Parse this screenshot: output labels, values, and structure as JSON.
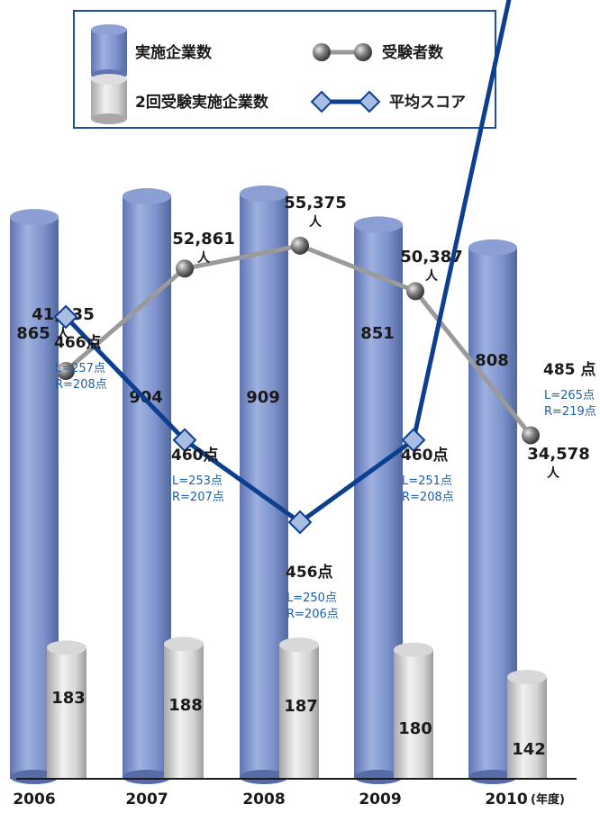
{
  "chart_data": {
    "type": "bar",
    "categories": [
      "2006",
      "2007",
      "2008",
      "2009",
      "2010"
    ],
    "x_unit_label": "(年度)",
    "legend": {
      "position": "top",
      "entries": [
        {
          "label": "実施企業数",
          "kind": "blue-cylinder"
        },
        {
          "label": "受験者数",
          "kind": "gray-line-ball"
        },
        {
          "label": "2回受験実施企業数",
          "kind": "gray-cylinder"
        },
        {
          "label": "平均スコア",
          "kind": "blue-line-diamond"
        }
      ]
    },
    "series": [
      {
        "name": "実施企業数",
        "kind": "bar",
        "values": [
          865,
          904,
          909,
          851,
          808
        ],
        "labels": [
          "865",
          "904",
          "909",
          "851",
          "808"
        ]
      },
      {
        "name": "2回受験実施企業数",
        "kind": "bar",
        "values": [
          183,
          188,
          187,
          180,
          142
        ],
        "labels": [
          "183",
          "188",
          "187",
          "180",
          "142"
        ]
      },
      {
        "name": "受験者数",
        "kind": "line",
        "values": [
          41635,
          52861,
          55375,
          50387,
          34578
        ],
        "labels": [
          "41,635",
          "52,861",
          "55,375",
          "50,387",
          "34,578"
        ],
        "unit": "人"
      },
      {
        "name": "平均スコア",
        "kind": "line",
        "values": [
          466,
          460,
          456,
          460,
          485
        ],
        "labels": [
          "466点",
          "460点",
          "456点",
          "460点",
          "485 点"
        ],
        "sub_l": [
          "L=257点",
          "L=253点",
          "L=250点",
          "L=251点",
          "L=265点"
        ],
        "sub_r": [
          "R=208点",
          "R=207点",
          "R=206点",
          "R=208点",
          "R=219点"
        ]
      }
    ],
    "colors": {
      "bar_blue": "#7a8fc8",
      "bar_gray": "#c8c8c8",
      "line_gray": "#9a9a9a",
      "line_blue": "#0d3f8f",
      "diamond_fill": "#a9bde3",
      "sub_text": "#1f5fa6",
      "legend_border": "#1f4f96"
    },
    "grid": false
  }
}
